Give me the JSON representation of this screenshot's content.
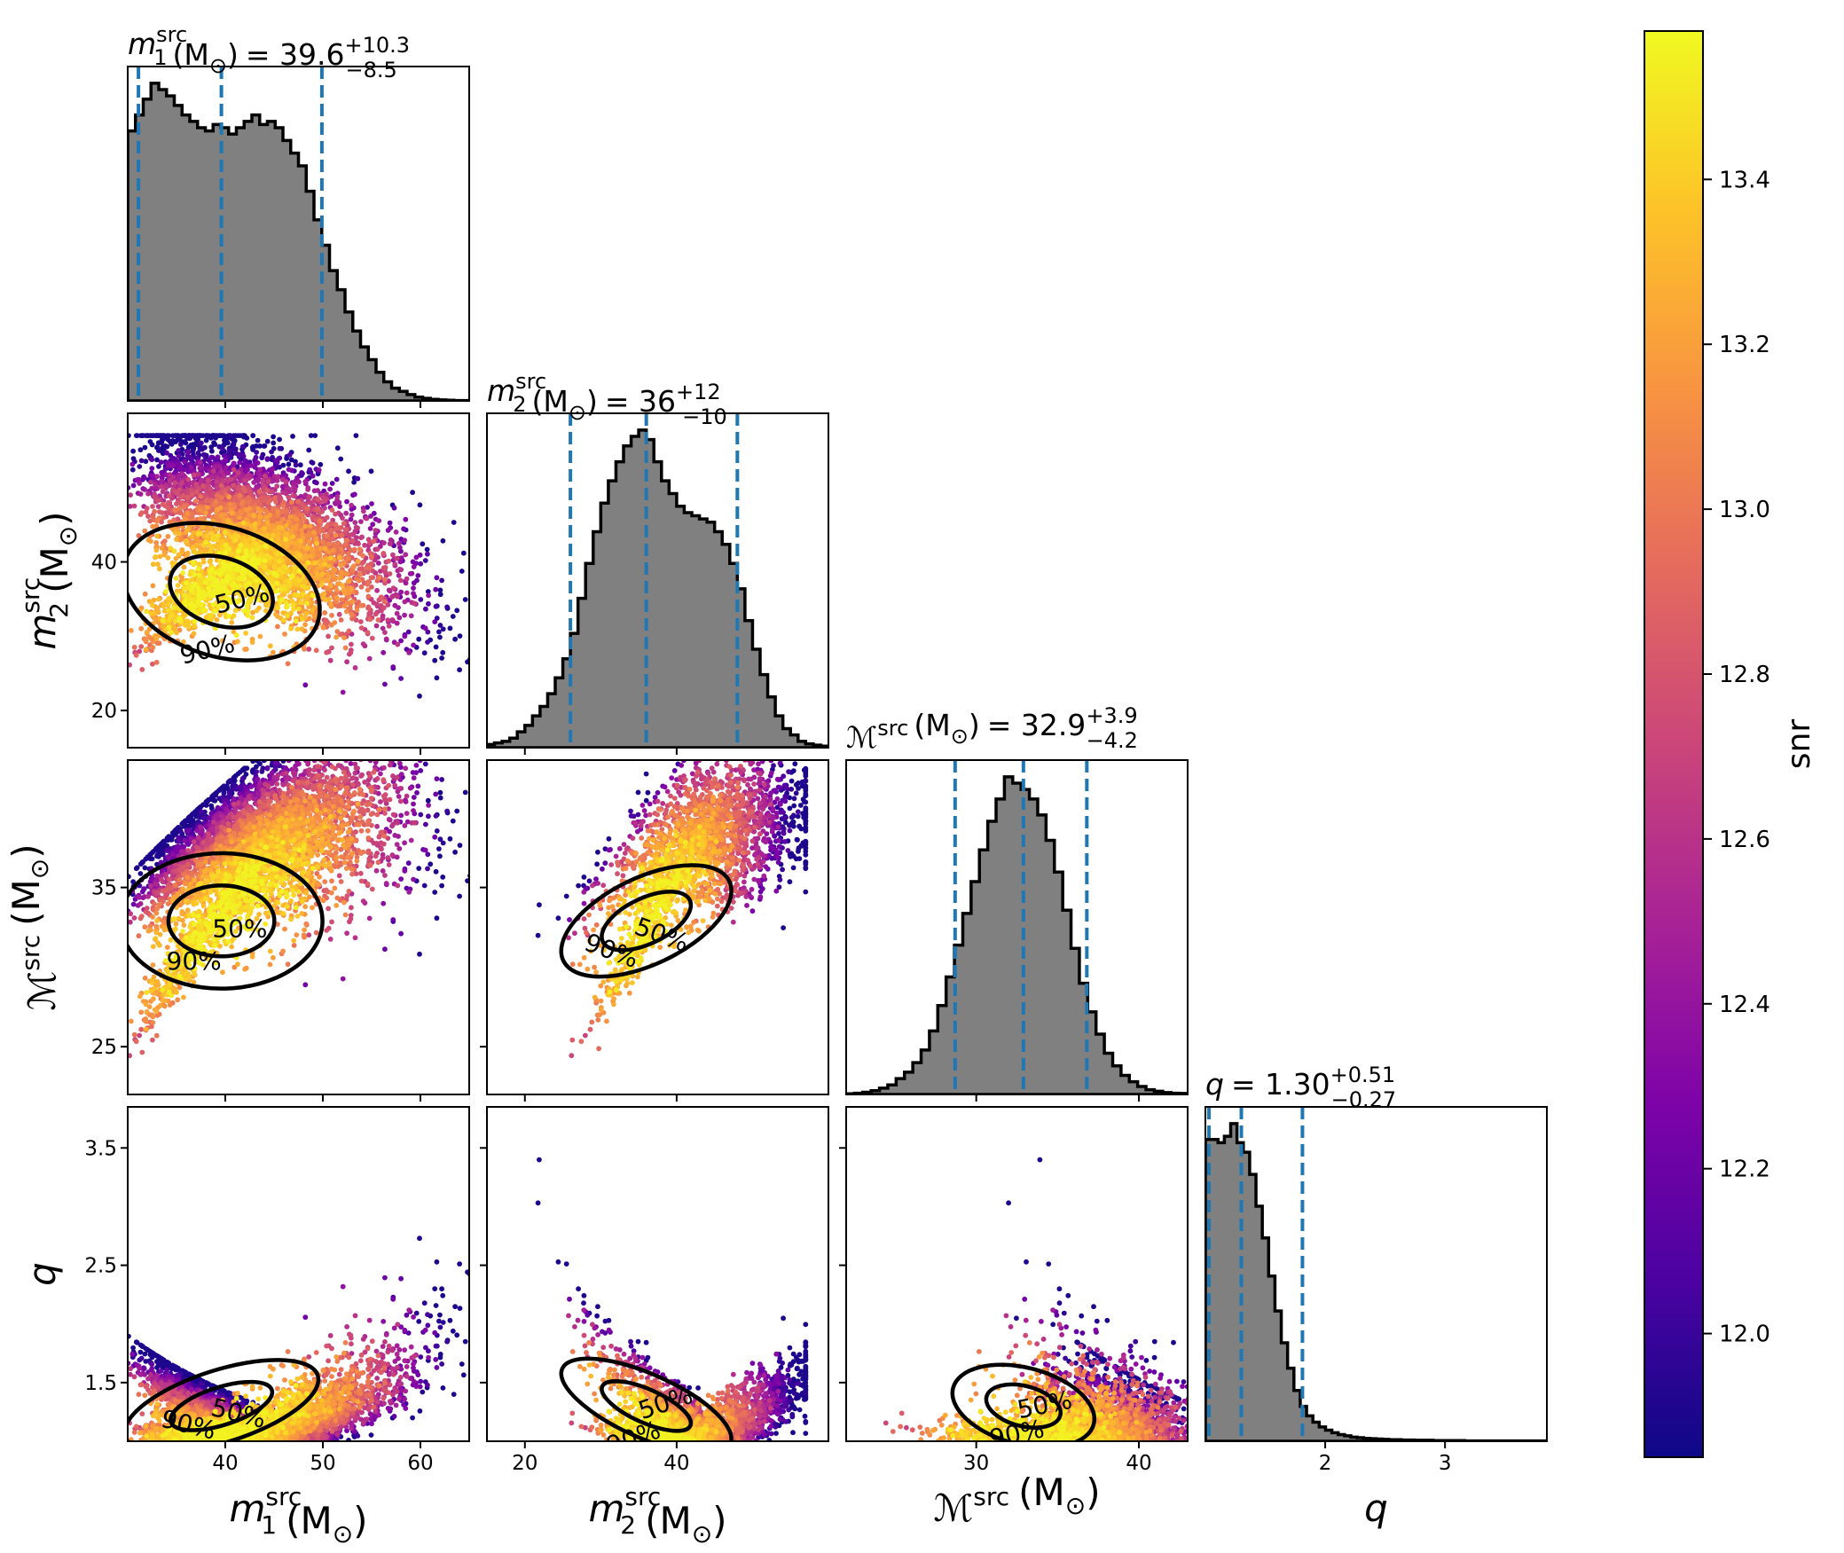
{
  "chart_data": {
    "type": "corner",
    "parameters": [
      {
        "key": "m1",
        "symbol": "m",
        "sub": "1",
        "sup": "src",
        "unit": "(M",
        "unit_sub": "⊙",
        "unit_close": ")",
        "range": [
          30,
          65
        ],
        "ticks": [
          40,
          50,
          60
        ],
        "median": "39.6",
        "plus": "+10.3",
        "minus": "−8.5",
        "title_prefix": "",
        "title_eq": "=",
        "median_val": 39.6,
        "lower_val": 31.1,
        "upper_val": 49.9
      },
      {
        "key": "m2",
        "symbol": "m",
        "sub": "2",
        "sup": "src",
        "unit": "(M",
        "unit_sub": "⊙",
        "unit_close": ")",
        "range": [
          15,
          60
        ],
        "ticks": [
          20,
          40
        ],
        "median": "36",
        "plus": "+12",
        "minus": "−10",
        "title_prefix": "",
        "title_eq": "=",
        "median_val": 36,
        "lower_val": 26,
        "upper_val": 48
      },
      {
        "key": "mchirp",
        "symbol": "ℳ",
        "sub": "",
        "sup": "src",
        "unit": "(M",
        "unit_sub": "⊙",
        "unit_close": ")",
        "range": [
          22,
          43
        ],
        "ticks": [
          30,
          40
        ],
        "median": "32.9",
        "plus": "+3.9",
        "minus": "−4.2",
        "title_prefix": "",
        "title_eq": "=",
        "median_val": 32.9,
        "lower_val": 28.7,
        "upper_val": 36.8
      },
      {
        "key": "q",
        "symbol": "q",
        "sub": "",
        "sup": "",
        "unit": "",
        "unit_sub": "",
        "unit_close": "",
        "range": [
          1.0,
          3.85
        ],
        "ticks": [
          2,
          3
        ],
        "median": "1.30",
        "plus": "+0.51",
        "minus": "−0.27",
        "title_prefix": "",
        "title_eq": "=",
        "median_val": 1.3,
        "lower_val": 1.03,
        "upper_val": 1.81
      }
    ],
    "ylabel_ticks": {
      "m2": [
        20,
        40
      ],
      "mchirp": [
        25,
        35
      ],
      "q": [
        1.5,
        2.5,
        3.5
      ]
    },
    "histograms": {
      "m1": [
        0.85,
        0.9,
        0.95,
        1.0,
        0.98,
        0.96,
        0.93,
        0.9,
        0.88,
        0.86,
        0.85,
        0.87,
        0.86,
        0.84,
        0.86,
        0.88,
        0.9,
        0.87,
        0.88,
        0.86,
        0.82,
        0.78,
        0.74,
        0.66,
        0.57,
        0.49,
        0.41,
        0.35,
        0.28,
        0.22,
        0.17,
        0.13,
        0.09,
        0.06,
        0.04,
        0.03,
        0.02,
        0.012,
        0.008,
        0.005,
        0.003,
        0.002,
        0.001,
        0.001
      ],
      "m2": [
        0.01,
        0.015,
        0.02,
        0.03,
        0.05,
        0.07,
        0.1,
        0.13,
        0.17,
        0.22,
        0.28,
        0.36,
        0.47,
        0.58,
        0.68,
        0.77,
        0.84,
        0.9,
        0.95,
        0.98,
        1.0,
        0.97,
        0.9,
        0.84,
        0.8,
        0.76,
        0.74,
        0.73,
        0.72,
        0.71,
        0.68,
        0.64,
        0.58,
        0.5,
        0.4,
        0.31,
        0.23,
        0.16,
        0.1,
        0.06,
        0.04,
        0.02,
        0.012,
        0.008,
        0.005
      ],
      "mchirp": [
        0.002,
        0.004,
        0.007,
        0.012,
        0.02,
        0.03,
        0.05,
        0.07,
        0.1,
        0.14,
        0.2,
        0.28,
        0.37,
        0.47,
        0.57,
        0.67,
        0.77,
        0.86,
        0.93,
        1.0,
        0.98,
        0.96,
        0.93,
        0.88,
        0.8,
        0.7,
        0.58,
        0.46,
        0.35,
        0.26,
        0.19,
        0.13,
        0.09,
        0.06,
        0.04,
        0.025,
        0.015,
        0.01,
        0.006,
        0.004,
        0.003
      ],
      "q": [
        0.95,
        0.95,
        0.94,
        0.96,
        1.0,
        0.94,
        0.91,
        0.84,
        0.74,
        0.64,
        0.52,
        0.41,
        0.31,
        0.23,
        0.16,
        0.11,
        0.08,
        0.06,
        0.045,
        0.035,
        0.027,
        0.021,
        0.017,
        0.013,
        0.011,
        0.009,
        0.008,
        0.007,
        0.006,
        0.005,
        0.005,
        0.004,
        0.004,
        0.003,
        0.003,
        0.003,
        0.002,
        0.002,
        0.002,
        0.002,
        0.002,
        0.001,
        0.001,
        0.001,
        0.001,
        0.001,
        0.001,
        0.001,
        0.001,
        0.001,
        0.001,
        0.001,
        0.001,
        0.001
      ]
    },
    "contour_labels": [
      "50%",
      "90%"
    ],
    "colorbar": {
      "label": "snr",
      "min": 11.85,
      "max": 13.58,
      "ticks": [
        12.0,
        12.2,
        12.4,
        12.6,
        12.8,
        13.0,
        13.2,
        13.4
      ],
      "tick_labels": [
        "12.0",
        "12.2",
        "12.4",
        "12.6",
        "12.8",
        "13.0",
        "13.2",
        "13.4"
      ],
      "colormap": "plasma"
    },
    "colors": {
      "hist_fill": "#808080",
      "hist_edge": "#000000",
      "quantile_line": "#1f77b4",
      "contour": "#000000"
    }
  }
}
